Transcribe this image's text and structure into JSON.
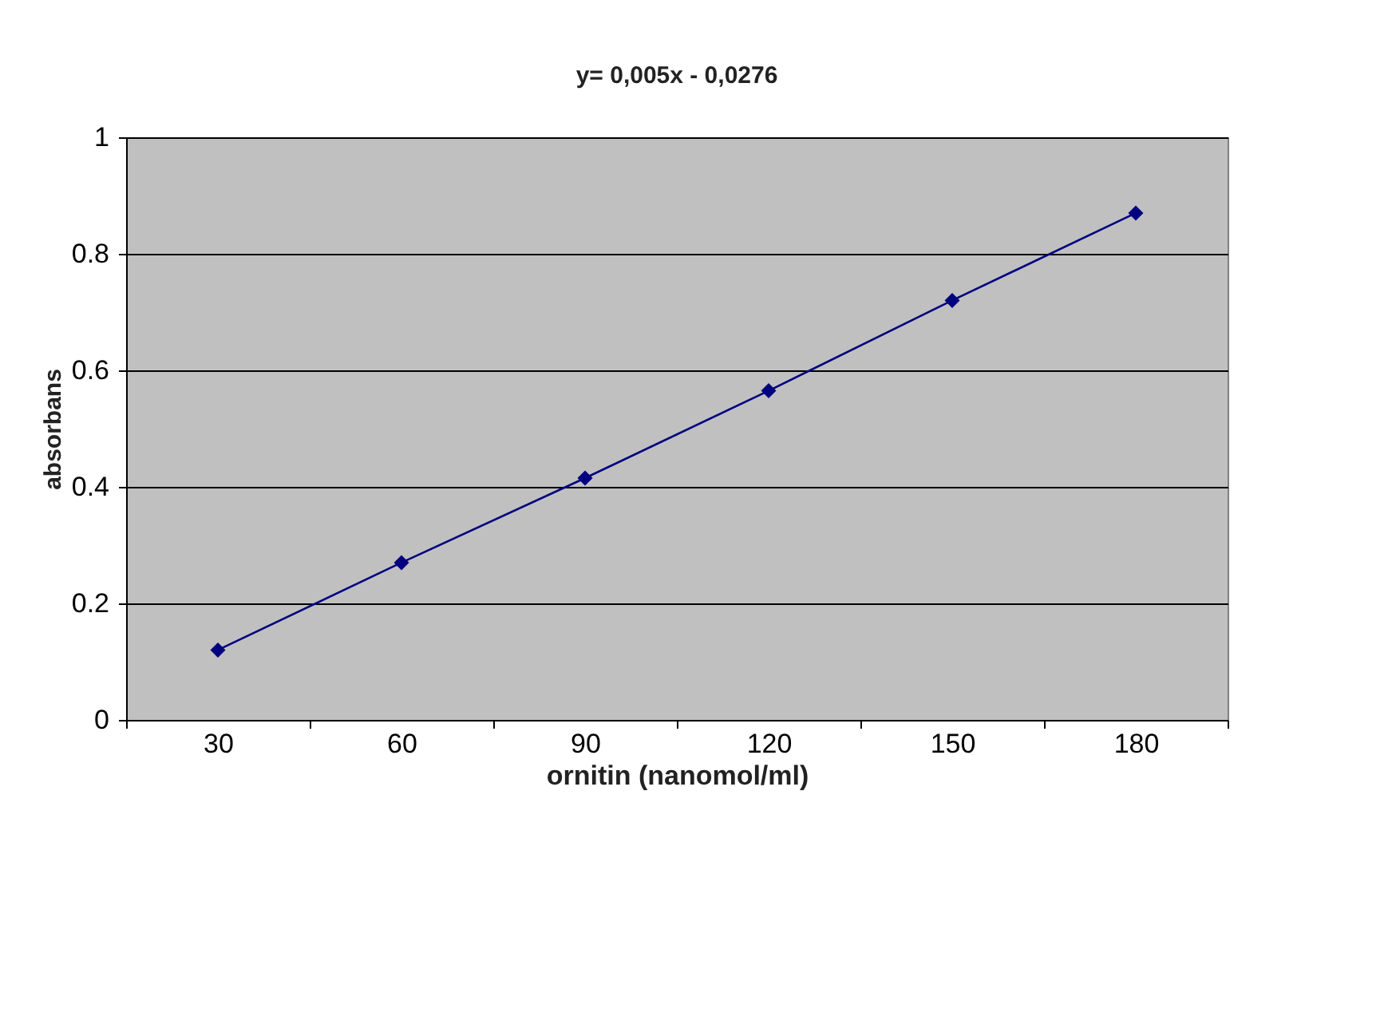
{
  "chart_data": {
    "type": "line",
    "title": "y= 0,005x - 0,0276",
    "xlabel": "ornitin (nanomol/ml)",
    "ylabel": "absorbans",
    "categories": [
      "30",
      "60",
      "90",
      "120",
      "150",
      "180"
    ],
    "series": [
      {
        "color": "#000080",
        "values": [
          0.12,
          0.27,
          0.415,
          0.565,
          0.72,
          0.87
        ]
      }
    ],
    "ylim": [
      0,
      1
    ],
    "yticks": [
      0,
      0.2,
      0.4,
      0.6,
      0.8,
      1
    ],
    "grid": "y",
    "marker": "diamond",
    "line_style": "solid"
  }
}
